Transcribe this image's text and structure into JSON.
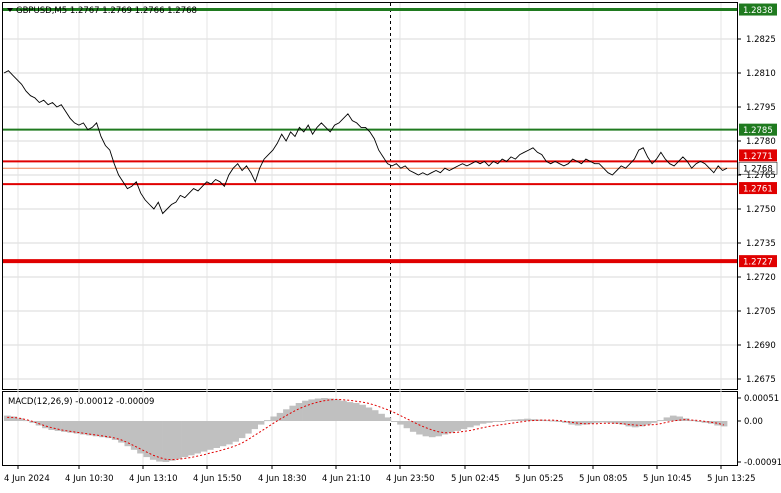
{
  "header": {
    "symbol_line": "GBPUSD,M5  1.2767 1.2769 1.2766 1.2768"
  },
  "macd": {
    "label": "MACD(12,26,9) -0.00012 -0.00009",
    "axis_ticks": [
      "0.00051",
      "0.00",
      "-0.00091"
    ]
  },
  "colors": {
    "green_line": "#1f7a1f",
    "red_line": "#e00000",
    "price_line_color": "#000000",
    "current_price_line": "#f08050",
    "macd_hist": "#c0c0c0",
    "macd_signal": "#e00000"
  },
  "chart_data": {
    "type": "line",
    "symbol": "GBPUSD",
    "timeframe": "M5",
    "y_ticks": [
      "1.2825",
      "1.2810",
      "1.2795",
      "1.2780",
      "1.2765",
      "1.2750",
      "1.2735",
      "1.2720",
      "1.2705",
      "1.2690",
      "1.2675"
    ],
    "y_range": [
      1.2668,
      1.2838
    ],
    "x_ticks": [
      "4 Jun 2024",
      "4 Jun 10:30",
      "4 Jun 13:10",
      "4 Jun 15:50",
      "4 Jun 18:30",
      "4 Jun 21:10",
      "4 Jun 23:50",
      "5 Jun 02:45",
      "5 Jun 05:25",
      "5 Jun 08:05",
      "5 Jun 10:45",
      "5 Jun 13:25"
    ],
    "levels": [
      {
        "label": "1.2838",
        "value": 1.2838,
        "color": "green"
      },
      {
        "label": "1.2785",
        "value": 1.2785,
        "color": "green"
      },
      {
        "label": "1.2771",
        "value": 1.2771,
        "color": "red"
      },
      {
        "label": "1.2768",
        "value": 1.2768,
        "color": "current"
      },
      {
        "label": "1.2761",
        "value": 1.2761,
        "color": "red"
      },
      {
        "label": "1.2727",
        "value": 1.2727,
        "color": "red"
      }
    ],
    "price_series": [
      1.281,
      1.2811,
      1.2809,
      1.2807,
      1.2805,
      1.2802,
      1.28,
      1.2799,
      1.2797,
      1.2798,
      1.2796,
      1.2797,
      1.2795,
      1.2796,
      1.2793,
      1.279,
      1.2788,
      1.2787,
      1.2788,
      1.2785,
      1.2786,
      1.2788,
      1.2782,
      1.2778,
      1.2776,
      1.277,
      1.2765,
      1.2762,
      1.2759,
      1.276,
      1.2762,
      1.2757,
      1.2754,
      1.2752,
      1.275,
      1.2753,
      1.2748,
      1.275,
      1.2752,
      1.2753,
      1.2756,
      1.2755,
      1.2757,
      1.2759,
      1.2758,
      1.276,
      1.2762,
      1.2761,
      1.2763,
      1.2762,
      1.276,
      1.2765,
      1.2768,
      1.277,
      1.2767,
      1.2769,
      1.2766,
      1.2762,
      1.2768,
      1.2772,
      1.2774,
      1.2776,
      1.2779,
      1.2783,
      1.278,
      1.2784,
      1.2782,
      1.2786,
      1.2784,
      1.2787,
      1.2783,
      1.2786,
      1.2788,
      1.2786,
      1.2784,
      1.2787,
      1.2788,
      1.279,
      1.2792,
      1.2789,
      1.2788,
      1.2786,
      1.2786,
      1.2784,
      1.2781,
      1.2776,
      1.2773,
      1.277,
      1.2769,
      1.277,
      1.2768,
      1.2769,
      1.2767,
      1.2766,
      1.2765,
      1.2766,
      1.2765,
      1.2766,
      1.2767,
      1.2766,
      1.2768,
      1.2767,
      1.2768,
      1.2769,
      1.277,
      1.2769,
      1.277,
      1.2771,
      1.277,
      1.2771,
      1.2769,
      1.2771,
      1.277,
      1.2772,
      1.2771,
      1.2773,
      1.2772,
      1.2774,
      1.2775,
      1.2776,
      1.2777,
      1.2775,
      1.2774,
      1.2771,
      1.277,
      1.2771,
      1.277,
      1.2769,
      1.277,
      1.2772,
      1.2771,
      1.277,
      1.2772,
      1.2771,
      1.277,
      1.277,
      1.2768,
      1.2766,
      1.2765,
      1.2767,
      1.2769,
      1.2768,
      1.277,
      1.2772,
      1.2776,
      1.2777,
      1.2773,
      1.277,
      1.2772,
      1.2775,
      1.2772,
      1.277,
      1.2769,
      1.2771,
      1.2773,
      1.2771,
      1.2768,
      1.277,
      1.2771,
      1.277,
      1.2768,
      1.2766,
      1.2769,
      1.2767,
      1.2768
    ],
    "macd_hist": [
      0.00012,
      0.0001,
      6e-05,
      2e-05,
      -4e-05,
      -0.0001,
      -0.00016,
      -0.0002,
      -0.00022,
      -0.00024,
      -0.00026,
      -0.00028,
      -0.0003,
      -0.00032,
      -0.00034,
      -0.00036,
      -0.00038,
      -0.00042,
      -0.00048,
      -0.00056,
      -0.00064,
      -0.00072,
      -0.0008,
      -0.00086,
      -0.0009,
      -0.00091,
      -0.00088,
      -0.00084,
      -0.0008,
      -0.00076,
      -0.00072,
      -0.00068,
      -0.00064,
      -0.0006,
      -0.00056,
      -0.00052,
      -0.00046,
      -0.00038,
      -0.00028,
      -0.00018,
      -8e-05,
      2e-05,
      0.0001,
      0.00018,
      0.00026,
      0.00034,
      0.0004,
      0.00045,
      0.00048,
      0.0005,
      0.00051,
      0.0005,
      0.00048,
      0.00045,
      0.00042,
      0.0004,
      0.00036,
      0.0003,
      0.00024,
      0.00016,
      8e-05,
      0.0,
      -8e-05,
      -0.00016,
      -0.00024,
      -0.0003,
      -0.00034,
      -0.00036,
      -0.00034,
      -0.0003,
      -0.00026,
      -0.00022,
      -0.00018,
      -0.00014,
      -0.0001,
      -6e-05,
      -4e-05,
      -2e-05,
      0.0,
      2e-05,
      3e-05,
      4e-05,
      5e-05,
      4e-05,
      3e-05,
      2e-05,
      1e-05,
      0.0,
      -4e-05,
      -8e-05,
      -0.0001,
      -8e-05,
      -6e-05,
      -4e-05,
      -3e-05,
      -4e-05,
      -6e-05,
      -8e-05,
      -0.00012,
      -0.00014,
      -0.00012,
      -8e-05,
      -4e-05,
      2e-05,
      8e-05,
      0.00012,
      0.0001,
      6e-05,
      2e-05,
      -2e-05,
      -4e-05,
      -6e-05,
      -0.0001,
      -0.00012
    ],
    "macd_signal": [
      8e-05,
      8e-05,
      6e-05,
      3e-05,
      -1e-05,
      -6e-05,
      -0.00011,
      -0.00015,
      -0.00018,
      -0.00021,
      -0.00023,
      -0.00025,
      -0.00027,
      -0.00029,
      -0.00031,
      -0.00033,
      -0.00035,
      -0.00038,
      -0.00042,
      -0.00048,
      -0.00055,
      -0.00062,
      -0.00069,
      -0.00076,
      -0.00081,
      -0.00085,
      -0.00086,
      -0.00085,
      -0.00083,
      -0.00081,
      -0.00078,
      -0.00075,
      -0.00071,
      -0.00068,
      -0.00064,
      -0.0006,
      -0.00055,
      -0.00049,
      -0.00041,
      -0.00032,
      -0.00023,
      -0.00014,
      -5e-05,
      4e-05,
      0.00012,
      0.0002,
      0.00027,
      0.00033,
      0.00038,
      0.00042,
      0.00045,
      0.00047,
      0.00048,
      0.00047,
      0.00046,
      0.00044,
      0.00042,
      0.00039,
      0.00035,
      0.0003,
      0.00025,
      0.00019,
      0.00012,
      5e-05,
      -2e-05,
      -9e-05,
      -0.00015,
      -0.0002,
      -0.00024,
      -0.00026,
      -0.00026,
      -0.00025,
      -0.00023,
      -0.00021,
      -0.00018,
      -0.00015,
      -0.00012,
      -0.0001,
      -8e-05,
      -6e-05,
      -4e-05,
      -2e-05,
      0.0,
      1e-05,
      2e-05,
      2e-05,
      2e-05,
      1e-05,
      -1e-05,
      -3e-05,
      -5e-05,
      -6e-05,
      -6e-05,
      -6e-05,
      -5e-05,
      -5e-05,
      -5e-05,
      -6e-05,
      -8e-05,
      -9e-05,
      -0.0001,
      -9e-05,
      -8e-05,
      -6e-05,
      -3e-05,
      0.0,
      2e-05,
      3e-05,
      2e-05,
      1e-05,
      -1e-05,
      -3e-05,
      -5e-05,
      -9e-05
    ]
  }
}
